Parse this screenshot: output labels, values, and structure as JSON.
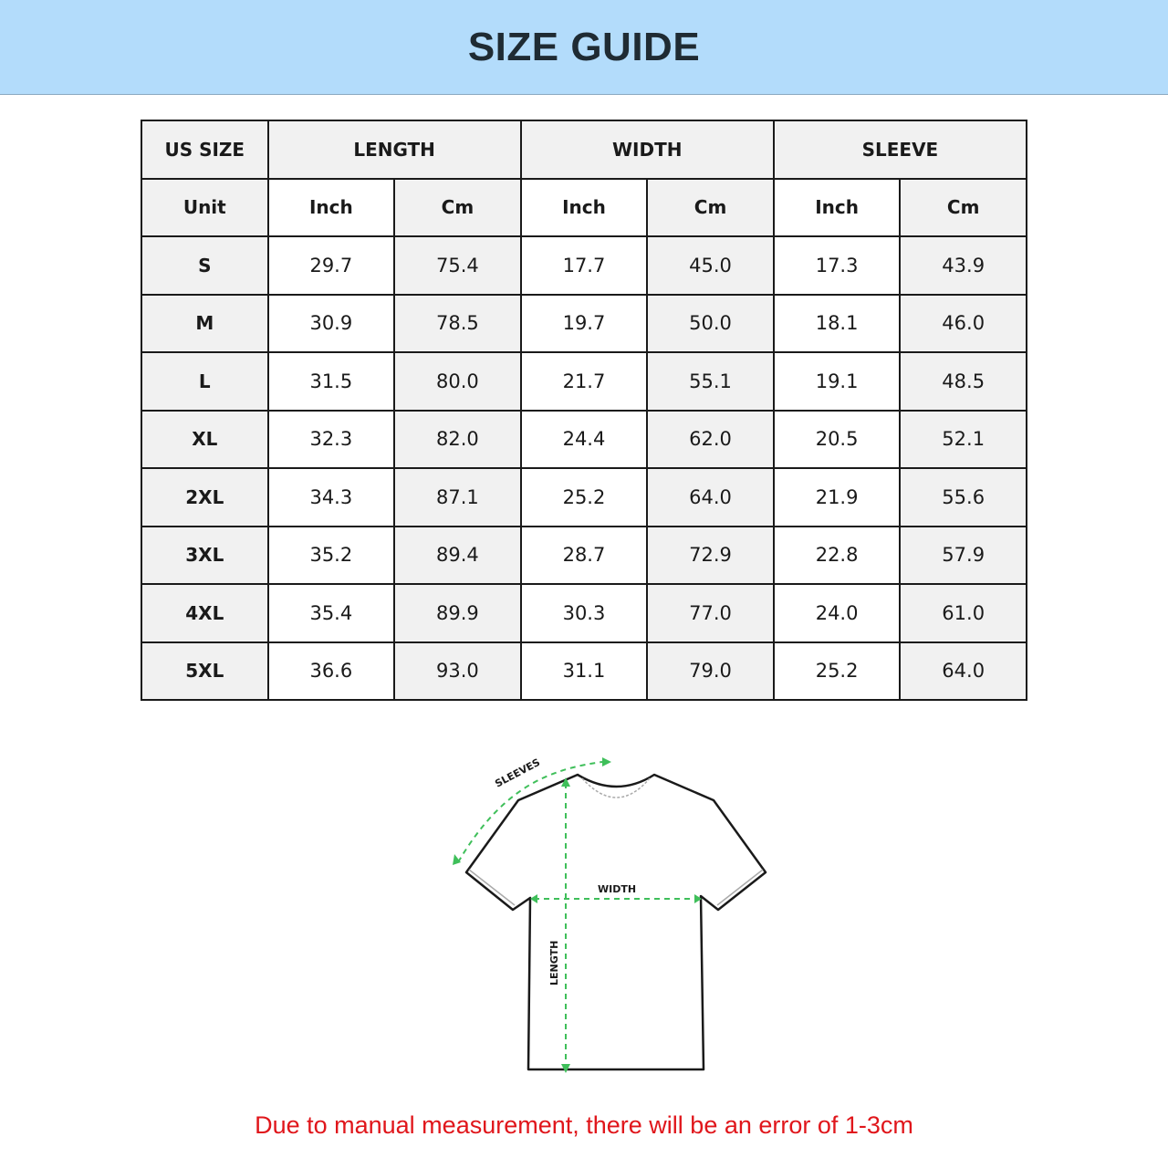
{
  "title": "SIZE GUIDE",
  "table": {
    "group_headers": [
      "US SIZE",
      "LENGTH",
      "WIDTH",
      "SLEEVE"
    ],
    "unit_row": [
      "Unit",
      "Inch",
      "Cm",
      "Inch",
      "Cm",
      "Inch",
      "Cm"
    ],
    "rows": [
      [
        "S",
        "29.7",
        "75.4",
        "17.7",
        "45.0",
        "17.3",
        "43.9"
      ],
      [
        "M",
        "30.9",
        "78.5",
        "19.7",
        "50.0",
        "18.1",
        "46.0"
      ],
      [
        "L",
        "31.5",
        "80.0",
        "21.7",
        "55.1",
        "19.1",
        "48.5"
      ],
      [
        "XL",
        "32.3",
        "82.0",
        "24.4",
        "62.0",
        "20.5",
        "52.1"
      ],
      [
        "2XL",
        "34.3",
        "87.1",
        "25.2",
        "64.0",
        "21.9",
        "55.6"
      ],
      [
        "3XL",
        "35.2",
        "89.4",
        "28.7",
        "72.9",
        "22.8",
        "57.9"
      ],
      [
        "4XL",
        "35.4",
        "89.9",
        "30.3",
        "77.0",
        "24.0",
        "61.0"
      ],
      [
        "5XL",
        "36.6",
        "93.0",
        "31.1",
        "79.0",
        "25.2",
        "64.0"
      ]
    ]
  },
  "diagram": {
    "sleeves_label": "SLEEVES",
    "width_label": "WIDTH",
    "length_label": "LENGTH",
    "measure_color": "#3fbf5a"
  },
  "note": "Due to manual measurement, there will be an error of 1-3cm",
  "colors": {
    "banner": "#b3dcfb",
    "note": "#e0161b"
  }
}
